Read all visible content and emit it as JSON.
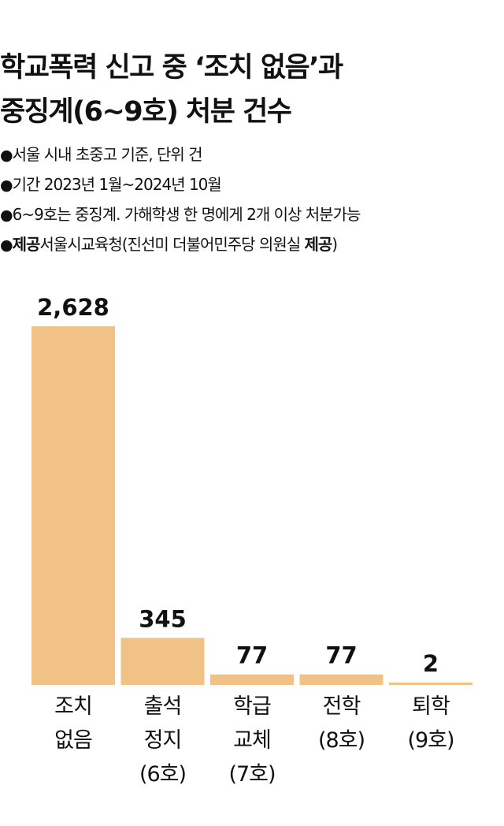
{
  "title": {
    "line1": "학교폭력 신고 중 ‘조치 없음’과",
    "line2": "중징계(6~9호) 처분 건수"
  },
  "notes": [
    {
      "bullet": "●",
      "prefix": "",
      "text": "서울 시내 초중고 기준, 단위  건"
    },
    {
      "bullet": "●",
      "prefix": "",
      "text": "기간  2023년 1월~2024년 10월"
    },
    {
      "bullet": "●",
      "prefix": "",
      "text": "6~9호는 중징계. 가해학생 한 명에게 2개 이상 처분가능"
    },
    {
      "bullet": "●",
      "prefix": "제공",
      "text": "서울시교육청(진선미 더불어민주당 의원실 ",
      "suffix": "제공",
      "tail": ")"
    }
  ],
  "colors": {
    "bar": "#F0C286",
    "text": "#111111",
    "baseline": "#F0C286"
  },
  "chart_data": {
    "type": "bar",
    "title": "학교폭력 신고 중 ‘조치 없음’과 중징계(6~9호) 처분 건수",
    "unit": "건",
    "categories": [
      [
        "조치",
        "없음"
      ],
      [
        "출석",
        "정지",
        "(6호)"
      ],
      [
        "학급",
        "교체",
        "(7호)"
      ],
      [
        "전학",
        "(8호)"
      ],
      [
        "퇴학",
        "(9호)"
      ]
    ],
    "values": [
      2628,
      345,
      77,
      77,
      2
    ],
    "value_labels": [
      "2,628",
      "345",
      "77",
      "77",
      "2"
    ],
    "ylim": [
      0,
      2628
    ],
    "grid": false,
    "legend": "none"
  }
}
